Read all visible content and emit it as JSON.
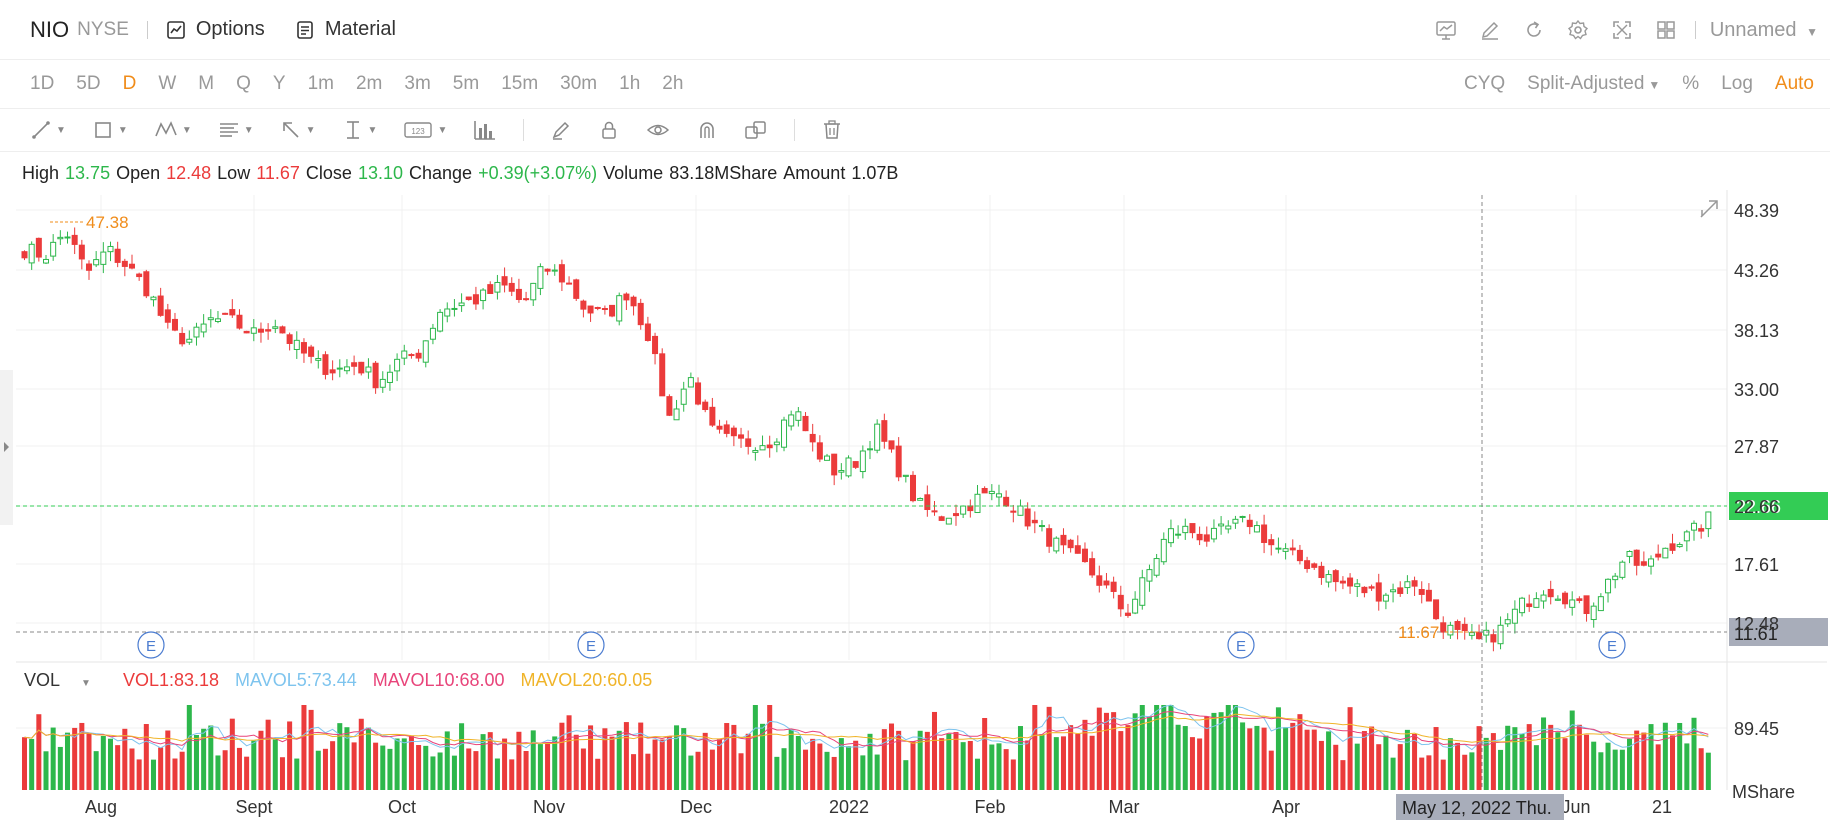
{
  "header": {
    "ticker": "NIO",
    "exchange": "NYSE",
    "options_label": "Options",
    "material_label": "Material",
    "layout_name": "Unnamed",
    "icons": [
      "chart-screen-icon",
      "pen-icon",
      "refresh-icon",
      "gear-icon",
      "fullscreen-icon",
      "grid-layout-icon"
    ]
  },
  "periods": [
    "1D",
    "5D",
    "D",
    "W",
    "M",
    "Q",
    "Y",
    "1m",
    "2m",
    "3m",
    "5m",
    "15m",
    "30m",
    "1h",
    "2h"
  ],
  "active_period": "D",
  "period_options": {
    "cyq": "CYQ",
    "adjust": "Split-Adjusted",
    "percent": "%",
    "log": "Log",
    "auto": "Auto"
  },
  "draw_tools": [
    "trend-line-icon",
    "rectangle-icon",
    "pattern-icon",
    "fib-icon",
    "arrow-icon",
    "measure-icon",
    "label-icon",
    "volume-profile-icon",
    "brush-icon",
    "lock-icon",
    "eye-icon",
    "magnet-icon",
    "copy-icon",
    "trash-icon"
  ],
  "ohlc": {
    "high_label": "High",
    "high": "13.75",
    "open_label": "Open",
    "open": "12.48",
    "low_label": "Low",
    "low": "11.67",
    "close_label": "Close",
    "close": "13.10",
    "change_label": "Change",
    "change": "+0.39(+3.07%)",
    "volume_label": "Volume",
    "volume": "83.18MShare",
    "amount_label": "Amount",
    "amount": "1.07B"
  },
  "volume_legend": {
    "label": "VOL",
    "vol1": "VOL1:83.18",
    "mavol5": "MAVOL5:73.44",
    "mavol10": "MAVOL10:68.00",
    "mavol20": "MAVOL20:60.05"
  },
  "colors": {
    "up": "#2db74b",
    "down": "#eb3b3b",
    "accent": "#f08c1a",
    "mavol5": "#7ec4ee",
    "mavol10": "#e8447a",
    "mavol20": "#f0b429",
    "price_tag": "#33cc55",
    "cursor_tag": "#a8adba"
  },
  "chart_data": {
    "type": "candlestick",
    "y_axis_labels": [
      "48.39",
      "43.26",
      "38.13",
      "33.00",
      "27.87",
      "22.66",
      "17.61",
      "12.48"
    ],
    "ylim": [
      11.0,
      49.5
    ],
    "x_axis_labels": [
      "Aug",
      "Sept",
      "Oct",
      "Nov",
      "Dec",
      "2022",
      "Feb",
      "Mar",
      "Apr",
      "Jun",
      "21"
    ],
    "current_price": "22.66",
    "cursor_price": "11.61",
    "cursor_date": "May 12, 2022 Thu.",
    "max_marker": "47.38",
    "min_marker": "11.67",
    "earnings_marker_label": "E",
    "volume_axis_label": "89.45",
    "volume_unit": "MShare",
    "close_path": [
      45,
      44.5,
      46.5,
      43,
      45,
      43.5,
      41.5,
      38,
      37.5,
      39.2,
      39,
      38,
      39,
      37,
      35.5,
      35,
      35.5,
      34,
      35.8,
      36.5,
      40,
      40.5,
      41,
      42,
      40.5,
      43.5,
      42.5,
      40,
      39.5,
      41.5,
      38,
      31,
      34.5,
      30,
      29,
      29,
      29.2,
      32,
      28.5,
      26.6,
      27.5,
      30,
      27,
      23.8,
      22.8,
      23.5,
      24.5,
      24.8,
      23,
      21.5,
      20,
      18.8,
      17,
      14.8,
      18,
      21.5,
      21.8,
      21,
      22,
      22.5,
      20.5,
      19.5,
      18.8,
      17.5,
      17,
      16.5,
      16.8,
      17.5,
      14.2,
      13,
      12.5,
      13.5,
      15.5,
      17,
      16.5,
      15,
      17,
      19.5,
      18.5,
      20.5,
      21.2,
      22.66
    ]
  }
}
